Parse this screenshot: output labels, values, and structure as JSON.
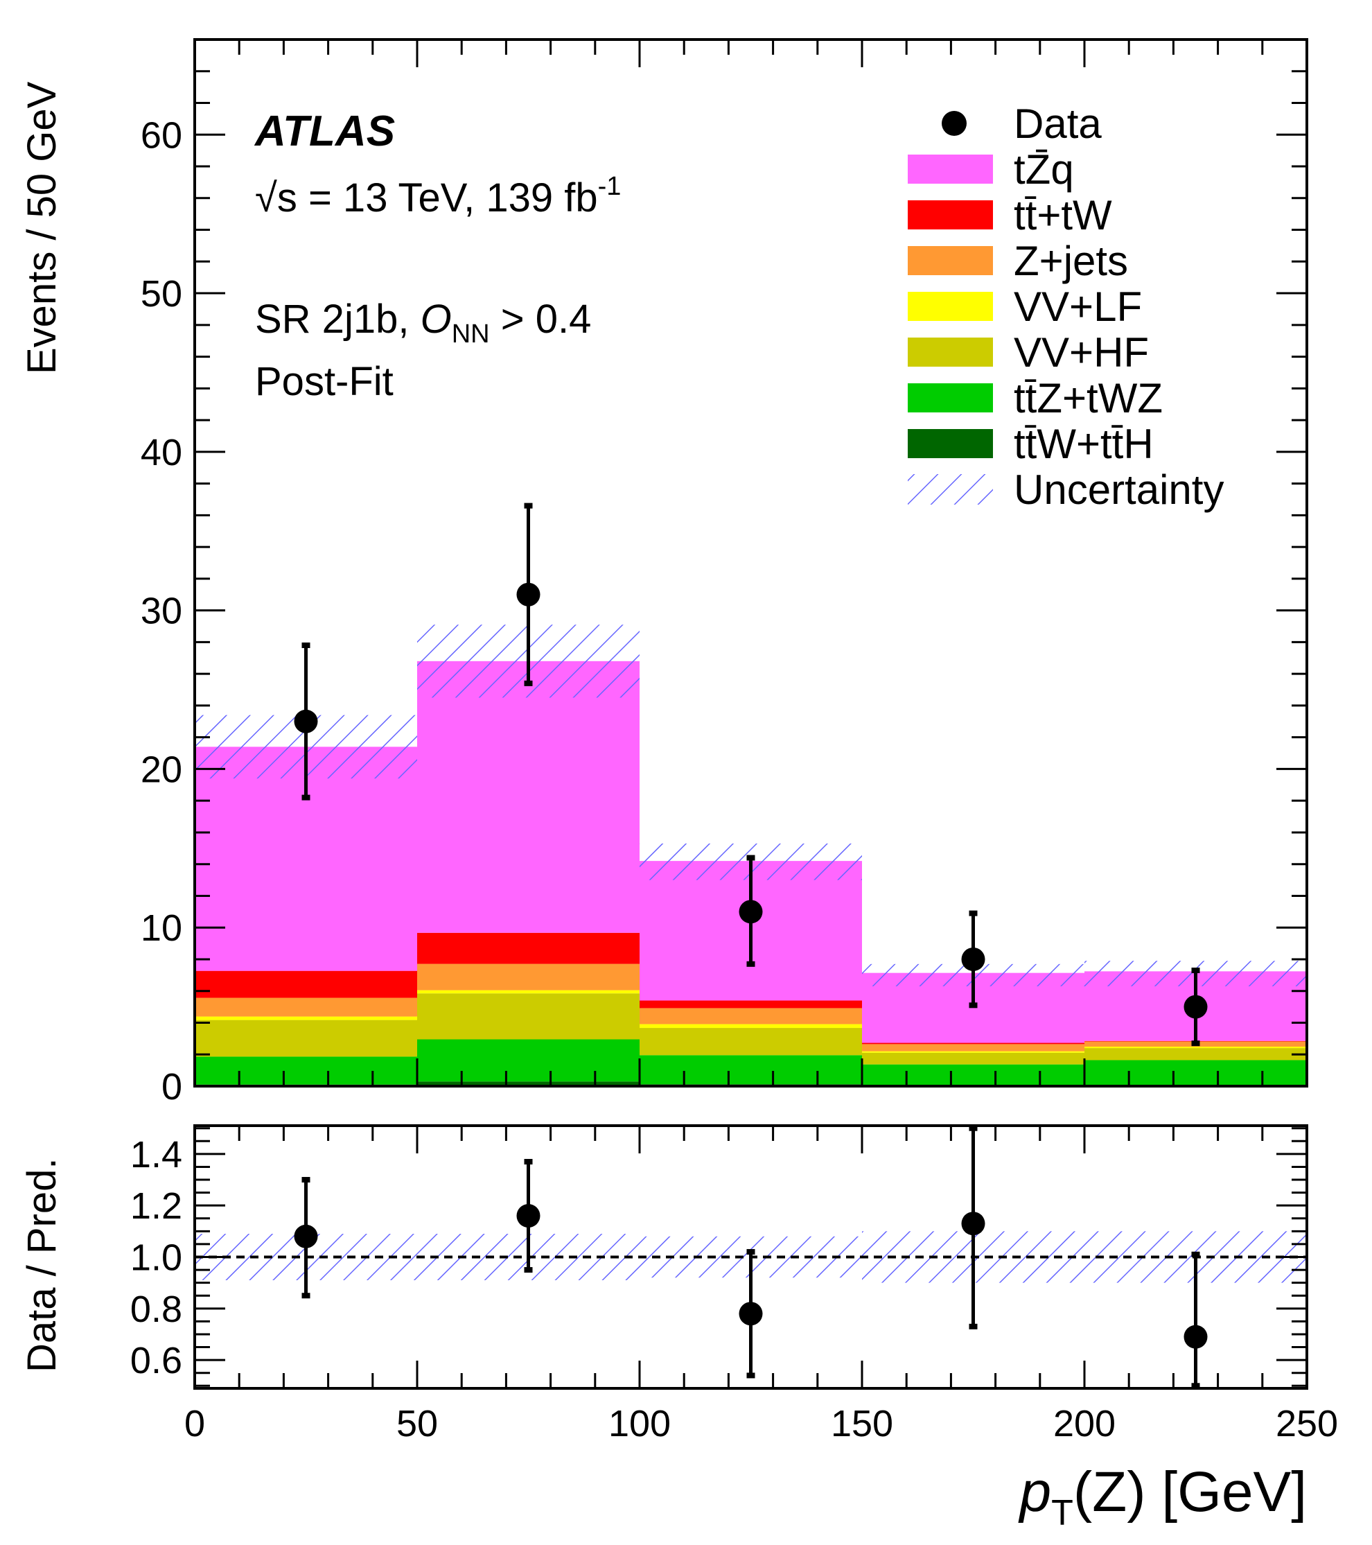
{
  "chart_data": {
    "type": "bar",
    "title": "",
    "annotations": {
      "experiment": "ATLAS",
      "energy": "√s = 13 TeV, 139 fb",
      "energy_sup": "-1",
      "region": "SR 2j1b, ",
      "onn_sym": "O",
      "onn_sub": "NN",
      "onn_cut": " > 0.4",
      "fit": "Post-Fit"
    },
    "xlabel": "p",
    "xlabel_sub": "T",
    "xlabel_rest": "(Z) [GeV]",
    "ylabel": "Events / 50 GeV",
    "ratio_ylabel": "Data / Pred.",
    "xlim": [
      0,
      250
    ],
    "ylim": [
      0,
      66
    ],
    "ratio_ylim": [
      0.49,
      1.51
    ],
    "x_ticks": [
      "0",
      "50",
      "100",
      "150",
      "200",
      "250"
    ],
    "y_ticks": [
      "0",
      "10",
      "20",
      "30",
      "40",
      "50",
      "60"
    ],
    "ratio_ticks": [
      "0.6",
      "0.8",
      "1.0",
      "1.2",
      "1.4"
    ],
    "bin_edges": [
      0,
      50,
      100,
      150,
      200,
      250
    ],
    "series": [
      {
        "name": "tt̄W+tt̄H",
        "color": "#006600",
        "values": [
          0.1,
          0.29,
          0.12,
          0.05,
          0.03
        ]
      },
      {
        "name": "tt̄Z+tWZ",
        "color": "#00cc00",
        "values": [
          1.76,
          2.66,
          1.83,
          1.32,
          1.61
        ]
      },
      {
        "name": "VV+HF",
        "color": "#cccc00",
        "values": [
          2.31,
          2.9,
          1.72,
          0.74,
          0.76
        ]
      },
      {
        "name": "VV+LF",
        "color": "#ffff00",
        "values": [
          0.22,
          0.2,
          0.24,
          0.09,
          0.09
        ]
      },
      {
        "name": "Z+jets",
        "color": "#ff9933",
        "values": [
          1.18,
          1.66,
          1.01,
          0.45,
          0.33
        ]
      },
      {
        "name": "tt̄+tW",
        "color": "#ff0000",
        "values": [
          1.7,
          1.96,
          0.48,
          0.08,
          0.03
        ]
      },
      {
        "name": "tZ̄q",
        "color": "#ff66ff",
        "values": [
          14.13,
          17.13,
          8.8,
          4.41,
          4.39
        ]
      }
    ],
    "legend_order": [
      "Data",
      "tZ̄q",
      "tt̄+tW",
      "Z+jets",
      "VV+LF",
      "VV+HF",
      "tt̄Z+tWZ",
      "tt̄W+tt̄H",
      "Uncertainty"
    ],
    "legend_placement": "top-right",
    "uncertainty": {
      "up": [
        23.4,
        29.1,
        15.3,
        7.7,
        7.9
      ],
      "down": [
        19.4,
        24.5,
        13.0,
        6.3,
        6.3
      ],
      "ratio_up": [
        1.09,
        1.09,
        1.08,
        1.1,
        1.1
      ],
      "ratio_down": [
        0.91,
        0.91,
        0.92,
        0.9,
        0.9
      ],
      "color": "#6666ff"
    },
    "data": {
      "x": [
        25,
        75,
        125,
        175,
        225
      ],
      "y": [
        23,
        31,
        11,
        8,
        5
      ],
      "err_up": [
        27.8,
        36.6,
        14.4,
        10.9,
        7.3
      ],
      "err_down": [
        18.2,
        25.4,
        7.7,
        5.1,
        2.7
      ]
    },
    "ratio": {
      "y": [
        1.08,
        1.16,
        0.78,
        1.13,
        0.69
      ],
      "err_up": [
        1.3,
        1.37,
        1.02,
        1.5,
        1.01
      ],
      "err_down": [
        0.85,
        0.95,
        0.54,
        0.73,
        0.5
      ]
    }
  }
}
